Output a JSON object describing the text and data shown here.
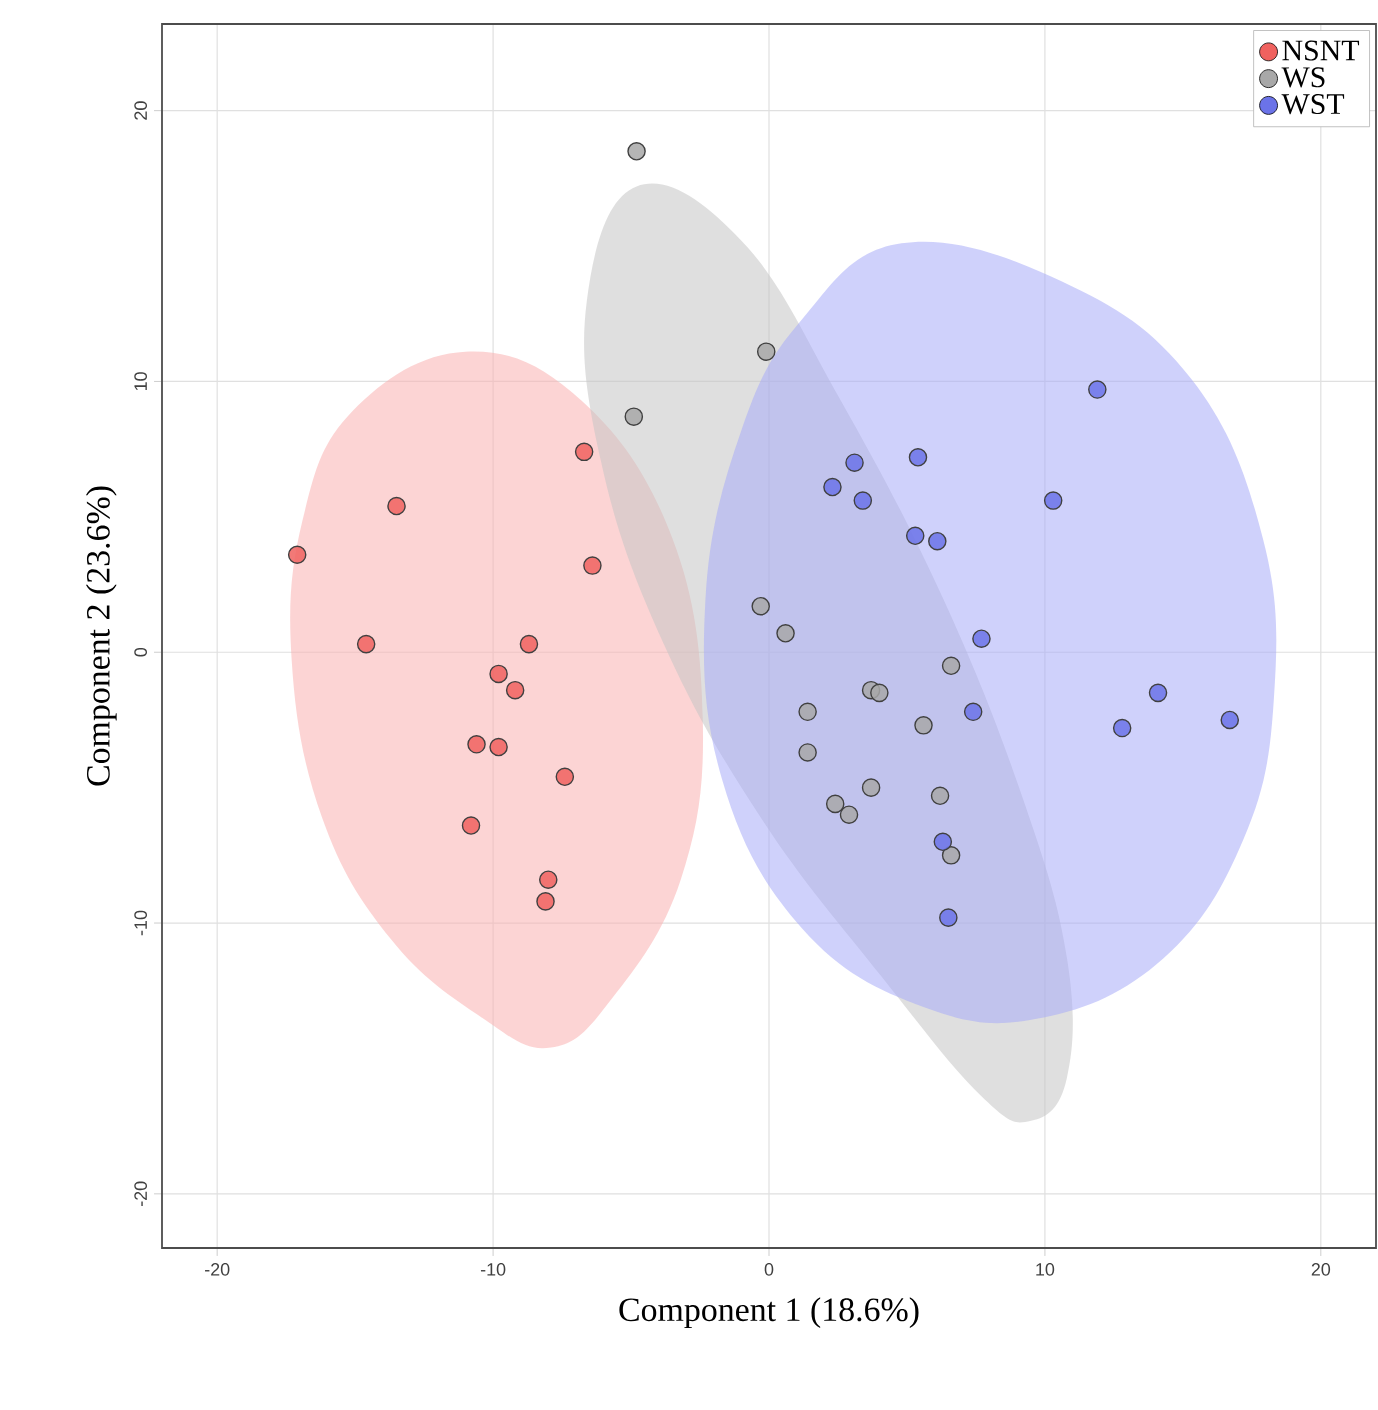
{
  "chart_data": {
    "type": "scatter",
    "xlabel": "Component 1 (18.6%)",
    "ylabel": "Component 2 (23.6%)",
    "xlim": [
      -22,
      22
    ],
    "ylim": [
      -22,
      23.2
    ],
    "xticks": [
      -20,
      -10,
      0,
      10,
      20
    ],
    "yticks": [
      -20,
      -10,
      0,
      10,
      20
    ],
    "grid": true,
    "legend": "top right",
    "series": [
      {
        "type": "area",
        "marker": "none",
        "color": "#f9b0b0",
        "x": [
          -11.0,
          -6.8,
          -3.5,
          -2.4,
          -3.2,
          -5.7,
          -7.9,
          -10.4,
          -13.7,
          -16.2,
          -17.3,
          -16.9,
          -15.1
        ],
        "values": [
          11.1,
          9.3,
          4.2,
          -2.5,
          -8.4,
          -12.8,
          -14.6,
          -13.5,
          -10.6,
          -6.1,
          -0.3,
          4.9,
          8.9
        ]
      },
      {
        "type": "area",
        "marker": "none",
        "color": "#c4c4c4",
        "x": [
          -4.8,
          -6.6,
          -6.1,
          -3.9,
          -0.3,
          4.1,
          7.7,
          9.5,
          10.8,
          10.8,
          9.2,
          6.3,
          2.6,
          -1.0
        ],
        "values": [
          17.2,
          13.0,
          7.1,
          0.5,
          -6.1,
          -12.0,
          -16.4,
          -17.3,
          -15.7,
          -11.3,
          -5.4,
          2.0,
          9.3,
          15.2
        ]
      },
      {
        "type": "area",
        "marker": "none",
        "color": "#a8acf8",
        "x": [
          4.8,
          10.6,
          15.3,
          17.9,
          18.3,
          17.2,
          14.3,
          9.9,
          5.6,
          1.2,
          -1.7,
          -2.3,
          -1.0,
          1.2
        ],
        "values": [
          15.1,
          13.7,
          10.1,
          4.2,
          -1.7,
          -6.9,
          -11.3,
          -13.5,
          -13.1,
          -10.2,
          -4.7,
          2.0,
          8.2,
          12.3
        ]
      },
      {
        "name": "NSNT",
        "marker": "circle",
        "color": "#f0625f",
        "x": [
          -6.7,
          -13.5,
          -17.1,
          -6.4,
          -14.6,
          -8.7,
          -9.8,
          -9.2,
          -10.6,
          -9.8,
          -7.4,
          -10.8,
          -8.0,
          -8.1
        ],
        "values": [
          7.4,
          5.4,
          3.6,
          3.2,
          0.3,
          0.3,
          -0.8,
          -1.4,
          -3.4,
          -3.5,
          -4.6,
          -6.4,
          -8.4,
          -9.2
        ]
      },
      {
        "name": "WS",
        "marker": "circle",
        "color": "#a8a8a8",
        "x": [
          -4.8,
          -0.1,
          -4.9,
          -0.3,
          0.6,
          6.6,
          3.7,
          4.0,
          1.4,
          5.6,
          1.4,
          3.7,
          6.2,
          2.4,
          2.9,
          6.6
        ],
        "values": [
          18.5,
          11.1,
          8.7,
          1.7,
          0.7,
          -0.5,
          -1.4,
          -1.5,
          -2.2,
          -2.7,
          -3.7,
          -5.0,
          -5.3,
          -5.6,
          -6.0,
          -7.5
        ]
      },
      {
        "name": "WST",
        "marker": "circle",
        "color": "#6b73e8",
        "x": [
          11.9,
          5.4,
          3.1,
          2.3,
          3.4,
          10.3,
          5.3,
          6.1,
          7.7,
          7.4,
          14.1,
          12.8,
          16.7,
          6.3,
          6.5
        ],
        "values": [
          9.7,
          7.2,
          7.0,
          6.1,
          5.6,
          5.6,
          4.3,
          4.1,
          0.5,
          -2.2,
          -1.5,
          -2.8,
          -2.5,
          -7.0,
          -9.8
        ]
      }
    ]
  }
}
